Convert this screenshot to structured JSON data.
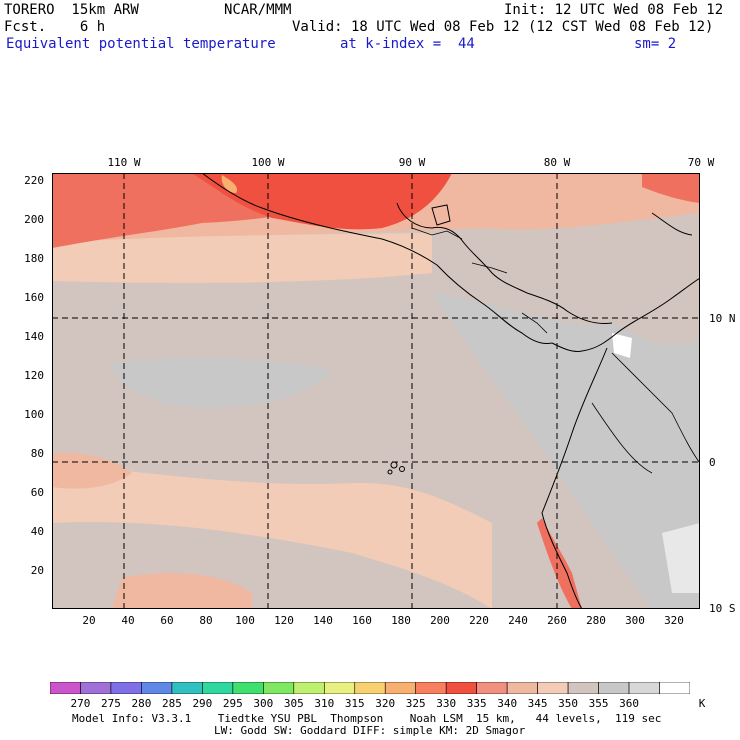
{
  "header": {
    "model": "TORERO  15km ARW",
    "org": "NCAR/MMM",
    "init": "Init: 12 UTC Wed 08 Feb 12",
    "fcst": "Fcst.    6 h",
    "valid": "Valid: 18 UTC Wed 08 Feb 12 (12 CST Wed 08 Feb 12)",
    "field": "Equivalent potential temperature",
    "level": "at k-index =  44",
    "smooth": "sm= 2"
  },
  "map": {
    "lon_labels": [
      "110 W",
      "100 W",
      "90 W",
      "80 W",
      "70 W"
    ],
    "lat_labels": [
      "10 N",
      "0",
      "10 S"
    ],
    "y_ticks": [
      "220",
      "200",
      "180",
      "160",
      "140",
      "120",
      "100",
      "80",
      "60",
      "40",
      "20"
    ],
    "x_ticks": [
      "20",
      "40",
      "60",
      "80",
      "100",
      "120",
      "140",
      "160",
      "180",
      "200",
      "220",
      "240",
      "260",
      "280",
      "300",
      "320"
    ]
  },
  "colorbar": {
    "unit": "K",
    "labels": [
      "270",
      "275",
      "280",
      "285",
      "290",
      "295",
      "300",
      "305",
      "310",
      "315",
      "320",
      "325",
      "330",
      "335",
      "340",
      "345",
      "350",
      "355",
      "360"
    ],
    "colors": [
      "#cc55cc",
      "#a070d8",
      "#8070e8",
      "#6088e8",
      "#30c0c0",
      "#30d8a0",
      "#40e070",
      "#80e860",
      "#c0f070",
      "#e8f080",
      "#f8d070",
      "#f8b070",
      "#f88060",
      "#f05040",
      "#f09080",
      "#f0b8a0",
      "#f2ccb6",
      "#d2c4be",
      "#c8c8c8",
      "#d8d8d8",
      "#ffffff"
    ]
  },
  "footer": {
    "line1": "Model Info: V3.3.1    Tiedtke YSU PBL  Thompson    Noah LSM  15 km,   44 levels,  119 sec",
    "line2": "LW: Godd SW: Goddard DIFF: simple KM: 2D Smagor"
  }
}
